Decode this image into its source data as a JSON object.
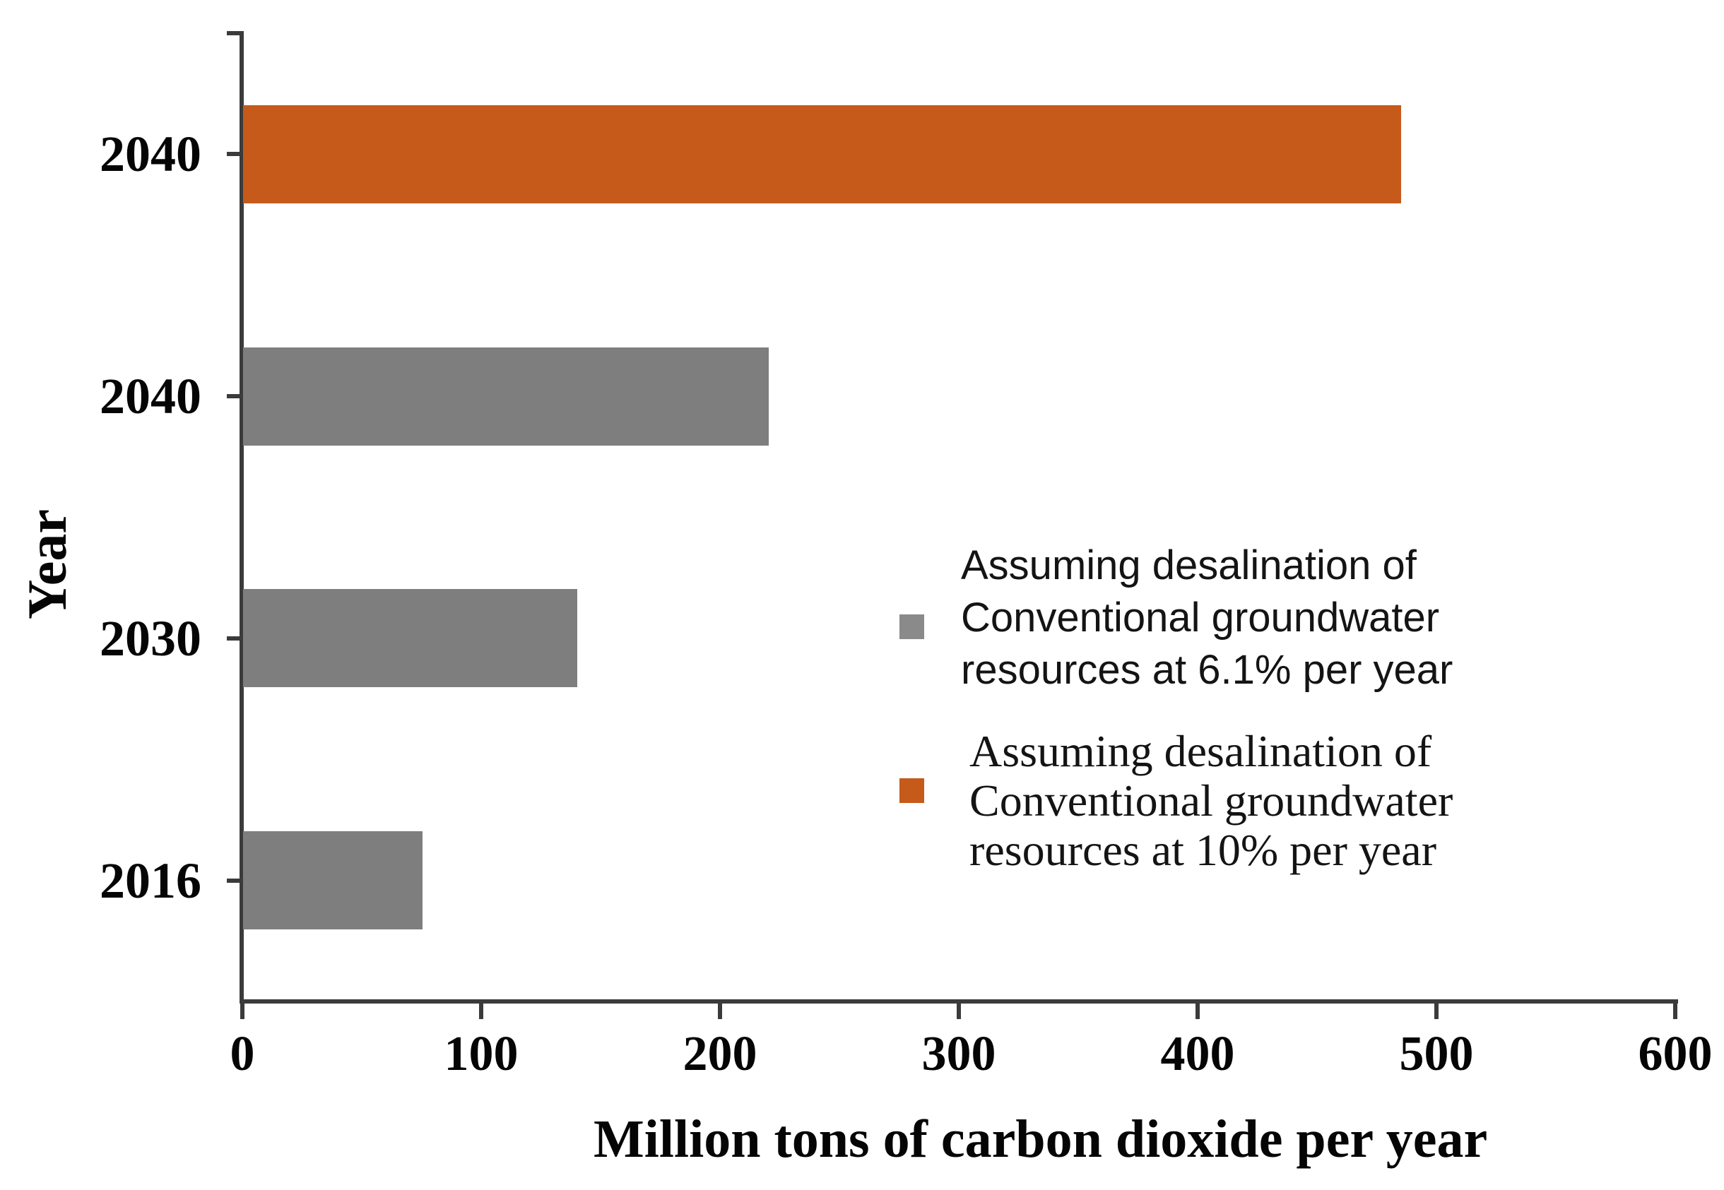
{
  "chart_data": {
    "type": "bar",
    "orientation": "horizontal",
    "title": "",
    "xlabel": "Million tons of carbon dioxide per year",
    "ylabel": "Year",
    "xlim": [
      0,
      600
    ],
    "x_ticks": [
      "0",
      "100",
      "200",
      "300",
      "400",
      "500",
      "600"
    ],
    "grid": false,
    "background": "#ffffff",
    "axis_color": "#3b3b3b",
    "categories": [
      "2040",
      "2040",
      "2030",
      "2016"
    ],
    "bars": [
      {
        "key": "2040-10pct",
        "category": "2040",
        "value": 485,
        "series": "Assuming desalination of Conventional groundwater resources at 10% per year",
        "color": "#C55A1B"
      },
      {
        "key": "2040-6-1pct",
        "category": "2040",
        "value": 220,
        "series": "Assuming desalination of Conventional groundwater resources at 6.1% per year",
        "color": "#7E7E7E"
      },
      {
        "key": "2030-6-1pct",
        "category": "2030",
        "value": 140,
        "series": "Assuming desalination of Conventional groundwater resources at 6.1% per year",
        "color": "#7E7E7E"
      },
      {
        "key": "2016-6-1pct",
        "category": "2016",
        "value": 75,
        "series": "Assuming desalination of Conventional groundwater resources at 6.1% per year",
        "color": "#7E7E7E"
      }
    ],
    "series": [
      {
        "name": "Assuming desalination of Conventional groundwater resources at 6.1% per year",
        "color": "#7E7E7E",
        "values_by_category": {
          "2016": 75,
          "2030": 140,
          "2040": 220
        }
      },
      {
        "name": "Assuming desalination of Conventional groundwater resources at 10% per year",
        "color": "#C55A1B",
        "values_by_category": {
          "2040": 485
        }
      }
    ],
    "legend_position": "center-right",
    "legend": [
      {
        "color": "#8A8A8A",
        "lines": [
          "Assuming desalination of",
          "Conventional groundwater",
          "resources at 6.1% per year"
        ]
      },
      {
        "color": "#C55A1B",
        "lines": [
          "Assuming desalination of",
          "Conventional groundwater",
          "resources at 10% per year"
        ]
      }
    ]
  }
}
